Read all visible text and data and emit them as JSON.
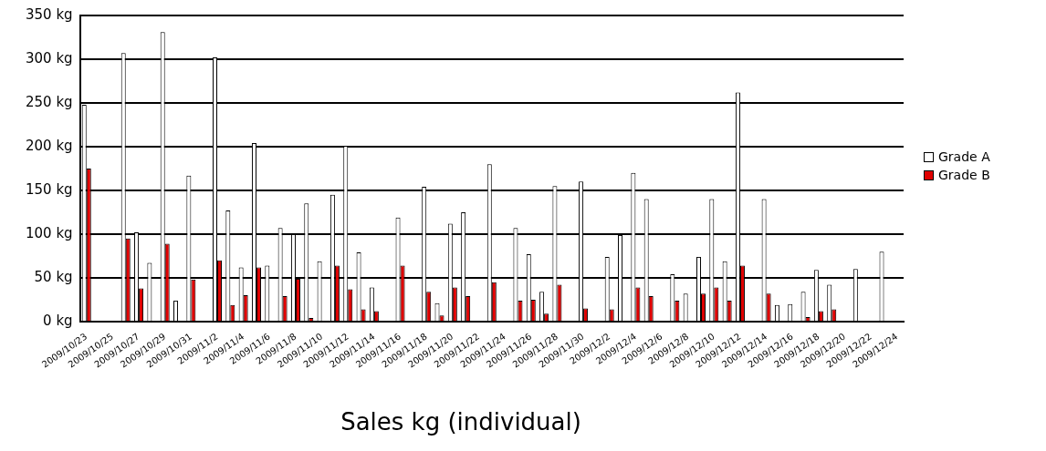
{
  "chart_data": {
    "type": "bar",
    "title": "Sales kg (individual)",
    "categories": [
      "2009/10/23",
      null,
      "2009/10/25",
      null,
      "2009/10/27",
      null,
      "2009/10/29",
      null,
      "2009/10/31",
      null,
      "2009/11/2",
      null,
      "2009/11/4",
      null,
      "2009/11/6",
      null,
      "2009/11/8",
      null,
      "2009/11/10",
      null,
      "2009/11/12",
      null,
      "2009/11/14",
      null,
      "2009/11/16",
      null,
      "2009/11/18",
      null,
      "2009/11/20",
      null,
      "2009/11/22",
      null,
      "2009/11/24",
      null,
      "2009/11/26",
      null,
      "2009/11/28",
      null,
      "2009/11/30",
      null,
      "2009/12/2",
      null,
      "2009/12/4",
      null,
      "2009/12/6",
      null,
      "2009/12/8",
      null,
      "2009/12/10",
      null,
      "2009/12/12",
      null,
      "2009/12/14",
      null,
      "2009/12/16",
      null,
      "2009/12/18",
      null,
      "2009/12/20",
      null,
      "2009/12/22",
      null,
      "2009/12/24"
    ],
    "series": [
      {
        "name": "Grade A",
        "color": "#ffffff",
        "values": [
          248,
          0,
          0,
          307,
          102,
          67,
          331,
          24,
          167,
          0,
          302,
          127,
          62,
          204,
          64,
          107,
          100,
          135,
          69,
          145,
          201,
          79,
          39,
          0,
          119,
          0,
          154,
          21,
          112,
          125,
          0,
          180,
          0,
          107,
          77,
          34,
          155,
          0,
          160,
          0,
          74,
          99,
          170,
          140,
          0,
          54,
          32,
          74,
          140,
          69,
          262,
          0,
          140,
          19,
          20,
          34,
          59,
          42,
          0,
          60,
          0,
          80,
          0
        ]
      },
      {
        "name": "Grade B",
        "color": "#e00000",
        "values": [
          175,
          0,
          0,
          95,
          38,
          0,
          89,
          0,
          48,
          0,
          70,
          19,
          30,
          62,
          0,
          29,
          49,
          4,
          0,
          64,
          37,
          14,
          12,
          0,
          64,
          0,
          34,
          7,
          39,
          29,
          0,
          45,
          0,
          24,
          25,
          9,
          42,
          0,
          15,
          0,
          14,
          0,
          39,
          29,
          0,
          24,
          0,
          32,
          39,
          24,
          64,
          0,
          32,
          0,
          0,
          5,
          12,
          14,
          0,
          0,
          0,
          0,
          0
        ]
      }
    ],
    "ylim": [
      0,
      350
    ],
    "yticks": [
      {
        "value": 0,
        "label": "0 kg"
      },
      {
        "value": 50,
        "label": "50 kg"
      },
      {
        "value": 100,
        "label": "100 kg"
      },
      {
        "value": 150,
        "label": "150 kg"
      },
      {
        "value": 200,
        "label": "200 kg"
      },
      {
        "value": 250,
        "label": "250 kg"
      },
      {
        "value": 300,
        "label": "300 kg"
      },
      {
        "value": 350,
        "label": "350 kg"
      }
    ],
    "grid": "y",
    "legend": "right"
  }
}
